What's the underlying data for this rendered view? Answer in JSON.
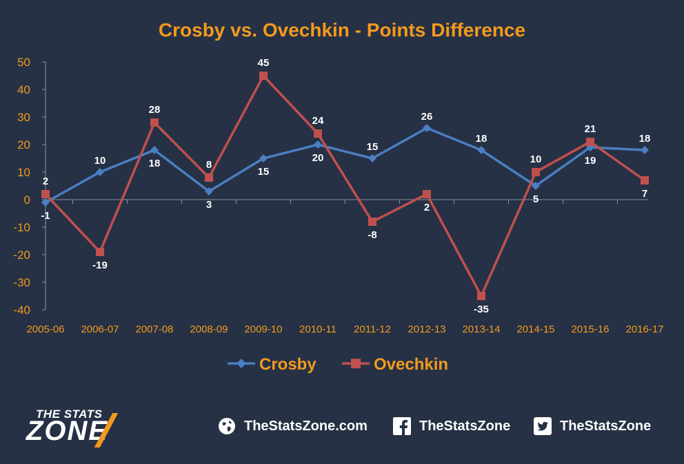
{
  "colors": {
    "background": "#263145",
    "accent": "#f39a1d",
    "crosby": "#4a7fc1",
    "ovechkin": "#c0504d",
    "text": "#ffffff"
  },
  "chart_data": {
    "type": "line",
    "title": "Crosby vs. Ovechkin - Points Difference",
    "categories": [
      "2005-06",
      "2006-07",
      "2007-08",
      "2008-09",
      "2009-10",
      "2010-11",
      "2011-12",
      "2012-13",
      "2013-14",
      "2014-15",
      "2015-16",
      "2016-17"
    ],
    "series": [
      {
        "name": "Crosby",
        "marker": "diamond",
        "color": "#4a7fc1",
        "values": [
          -1,
          10,
          18,
          3,
          15,
          20,
          15,
          26,
          18,
          5,
          19,
          18
        ],
        "labels": [
          "-1",
          "10",
          "18",
          "3",
          "15",
          "20",
          "15",
          "26",
          "18",
          "5",
          "19",
          "18"
        ]
      },
      {
        "name": "Ovechkin",
        "marker": "square",
        "color": "#c0504d",
        "values": [
          2,
          -19,
          28,
          8,
          45,
          24,
          -8,
          2,
          -35,
          10,
          21,
          7
        ],
        "labels": [
          "2",
          "-19",
          "28",
          "8",
          "45",
          "24",
          "-8",
          "2",
          "-35",
          "10",
          "21",
          "7"
        ]
      }
    ],
    "ylim": [
      -40,
      50
    ],
    "yticks": [
      "50",
      "40",
      "30",
      "20",
      "10",
      "0",
      "-10",
      "-20",
      "-30",
      "-40"
    ],
    "grid": false,
    "legend_position": "bottom-center"
  },
  "footer": {
    "logo_top": "THE STATS",
    "logo_main": "ZONE",
    "website": "TheStatsZone.com",
    "facebook": "TheStatsZone",
    "twitter": "TheStatsZone"
  }
}
